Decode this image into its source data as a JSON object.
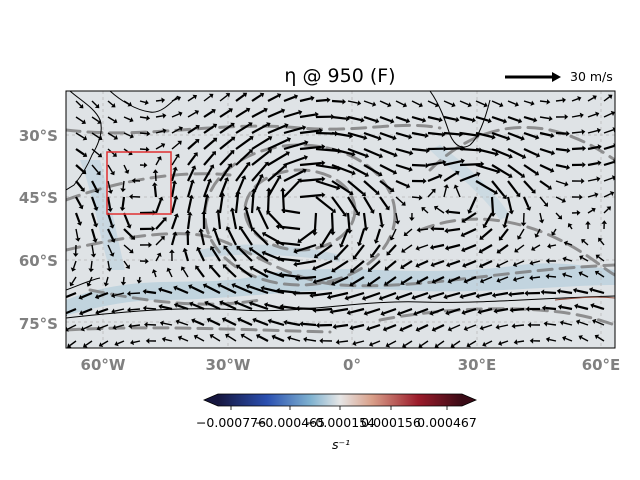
{
  "figure": {
    "title": "η @ 950 (F)",
    "quiver_key_label": "30 m/s",
    "colorbar": {
      "unit_label": "s⁻¹",
      "tick_labels": [
        "−0.000776",
        "−0.000465",
        "−0.000154",
        "0.000156",
        "0.000467"
      ],
      "colors": [
        "#16163f",
        "#2a4fb0",
        "#7fb2d0",
        "#e6e6e6",
        "#d9a08a",
        "#9b1b2a",
        "#3a0b16"
      ],
      "extend": "both"
    },
    "map": {
      "projection": "PlateCarree",
      "lon_range": [
        -70,
        62
      ],
      "lat_range": [
        -83,
        -22
      ],
      "lon_ticks": [
        "60°W",
        "30°W",
        "0°",
        "30°E",
        "60°E"
      ],
      "lat_ticks": [
        "30°S",
        "45°S",
        "60°S",
        "75°S"
      ],
      "gridlines": true,
      "coastlines": true,
      "highlight_box": {
        "lon": [
          -60,
          -45
        ],
        "lat": [
          -49,
          -35
        ],
        "color": "#e03030"
      },
      "background_field_color": "#dfe3e6",
      "contour_color": "#7a7a7a",
      "vector_color": "#000000"
    }
  }
}
